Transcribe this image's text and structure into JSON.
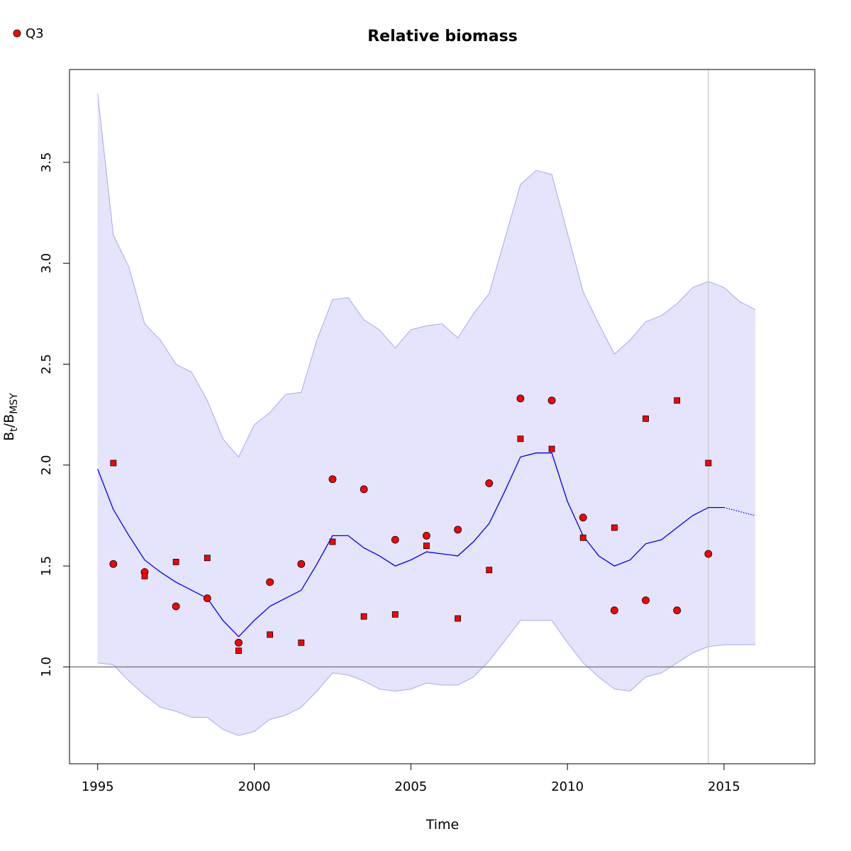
{
  "chart_data": {
    "type": "line",
    "title": "Relative biomass",
    "xlabel": "Time",
    "ylabel_main": "B",
    "ylabel_sub1": "t",
    "ylabel_sep": "/B",
    "ylabel_sub2": "MSY",
    "xlim": [
      1994.1,
      2017.9
    ],
    "ylim": [
      0.52,
      3.96
    ],
    "x_ticks": [
      1995,
      2000,
      2005,
      2010,
      2015
    ],
    "x_tick_labels": [
      "1995",
      "2000",
      "2005",
      "2010",
      "2015"
    ],
    "y_ticks": [
      1.0,
      1.5,
      2.0,
      2.5,
      3.0,
      3.5
    ],
    "y_tick_labels": [
      "1.0",
      "1.5",
      "2.0",
      "2.5",
      "3.0",
      "3.5"
    ],
    "reference_line_y": 1.0,
    "vertical_line_x": 2014.5,
    "legend": {
      "position": "top-left",
      "entries": [
        {
          "label": "Q3",
          "marker": "circle",
          "color": "#ff0000"
        }
      ]
    },
    "colors": {
      "band": "#e4e4fc",
      "band_edge": "#a8a8ee",
      "line": "#0000ee",
      "points": "#ff0000",
      "reference": "#777777",
      "vline": "#cccccc"
    },
    "band_upper": [
      [
        1995.0,
        3.84
      ],
      [
        1995.5,
        3.14
      ],
      [
        1996.0,
        2.98
      ],
      [
        1996.5,
        2.7
      ],
      [
        1997.0,
        2.62
      ],
      [
        1997.5,
        2.5
      ],
      [
        1998.0,
        2.46
      ],
      [
        1998.5,
        2.32
      ],
      [
        1999.0,
        2.13
      ],
      [
        1999.5,
        2.04
      ],
      [
        2000.0,
        2.2
      ],
      [
        2000.5,
        2.26
      ],
      [
        2001.0,
        2.35
      ],
      [
        2001.5,
        2.36
      ],
      [
        2002.0,
        2.62
      ],
      [
        2002.5,
        2.82
      ],
      [
        2003.0,
        2.83
      ],
      [
        2003.5,
        2.72
      ],
      [
        2004.0,
        2.67
      ],
      [
        2004.5,
        2.58
      ],
      [
        2005.0,
        2.67
      ],
      [
        2005.5,
        2.69
      ],
      [
        2006.0,
        2.7
      ],
      [
        2006.5,
        2.63
      ],
      [
        2007.0,
        2.75
      ],
      [
        2007.5,
        2.85
      ],
      [
        2008.0,
        3.12
      ],
      [
        2008.5,
        3.39
      ],
      [
        2009.0,
        3.46
      ],
      [
        2009.5,
        3.44
      ],
      [
        2010.0,
        3.15
      ],
      [
        2010.5,
        2.86
      ],
      [
        2011.0,
        2.7
      ],
      [
        2011.5,
        2.55
      ],
      [
        2012.0,
        2.62
      ],
      [
        2012.5,
        2.71
      ],
      [
        2013.0,
        2.74
      ],
      [
        2013.5,
        2.8
      ],
      [
        2014.0,
        2.88
      ],
      [
        2014.5,
        2.91
      ],
      [
        2015.0,
        2.88
      ],
      [
        2015.5,
        2.81
      ],
      [
        2016.0,
        2.77
      ]
    ],
    "band_lower": [
      [
        1995.0,
        1.02
      ],
      [
        1995.5,
        1.01
      ],
      [
        1996.0,
        0.93
      ],
      [
        1996.5,
        0.86
      ],
      [
        1997.0,
        0.8
      ],
      [
        1997.5,
        0.78
      ],
      [
        1998.0,
        0.75
      ],
      [
        1998.5,
        0.75
      ],
      [
        1999.0,
        0.69
      ],
      [
        1999.5,
        0.66
      ],
      [
        2000.0,
        0.68
      ],
      [
        2000.5,
        0.74
      ],
      [
        2001.0,
        0.76
      ],
      [
        2001.5,
        0.8
      ],
      [
        2002.0,
        0.88
      ],
      [
        2002.5,
        0.97
      ],
      [
        2003.0,
        0.96
      ],
      [
        2003.5,
        0.93
      ],
      [
        2004.0,
        0.89
      ],
      [
        2004.5,
        0.88
      ],
      [
        2005.0,
        0.89
      ],
      [
        2005.5,
        0.92
      ],
      [
        2006.0,
        0.91
      ],
      [
        2006.5,
        0.91
      ],
      [
        2007.0,
        0.95
      ],
      [
        2007.5,
        1.03
      ],
      [
        2008.0,
        1.13
      ],
      [
        2008.5,
        1.23
      ],
      [
        2009.0,
        1.23
      ],
      [
        2009.5,
        1.23
      ],
      [
        2010.0,
        1.12
      ],
      [
        2010.5,
        1.02
      ],
      [
        2011.0,
        0.95
      ],
      [
        2011.5,
        0.89
      ],
      [
        2012.0,
        0.88
      ],
      [
        2012.5,
        0.95
      ],
      [
        2013.0,
        0.97
      ],
      [
        2013.5,
        1.02
      ],
      [
        2014.0,
        1.07
      ],
      [
        2014.5,
        1.1
      ],
      [
        2015.0,
        1.11
      ],
      [
        2015.5,
        1.11
      ],
      [
        2016.0,
        1.11
      ]
    ],
    "series": [
      {
        "style": "solid",
        "points": [
          [
            1995.0,
            1.98
          ],
          [
            1995.5,
            1.78
          ],
          [
            1996.0,
            1.65
          ],
          [
            1996.5,
            1.53
          ],
          [
            1997.0,
            1.47
          ],
          [
            1997.5,
            1.42
          ],
          [
            1998.0,
            1.38
          ],
          [
            1998.5,
            1.34
          ],
          [
            1999.0,
            1.23
          ],
          [
            1999.5,
            1.15
          ],
          [
            2000.0,
            1.23
          ],
          [
            2000.5,
            1.3
          ],
          [
            2001.0,
            1.34
          ],
          [
            2001.5,
            1.38
          ],
          [
            2002.0,
            1.51
          ],
          [
            2002.5,
            1.65
          ],
          [
            2003.0,
            1.65
          ],
          [
            2003.5,
            1.59
          ],
          [
            2004.0,
            1.55
          ],
          [
            2004.5,
            1.5
          ],
          [
            2005.0,
            1.53
          ],
          [
            2005.5,
            1.57
          ],
          [
            2006.0,
            1.56
          ],
          [
            2006.5,
            1.55
          ],
          [
            2007.0,
            1.62
          ],
          [
            2007.5,
            1.71
          ],
          [
            2008.0,
            1.87
          ],
          [
            2008.5,
            2.04
          ],
          [
            2009.0,
            2.06
          ],
          [
            2009.5,
            2.06
          ],
          [
            2010.0,
            1.82
          ],
          [
            2010.5,
            1.65
          ],
          [
            2011.0,
            1.55
          ],
          [
            2011.5,
            1.5
          ],
          [
            2012.0,
            1.53
          ],
          [
            2012.5,
            1.61
          ],
          [
            2013.0,
            1.63
          ],
          [
            2013.5,
            1.69
          ],
          [
            2014.0,
            1.75
          ],
          [
            2014.5,
            1.79
          ],
          [
            2015.0,
            1.79
          ]
        ]
      },
      {
        "style": "dotted",
        "points": [
          [
            2015.0,
            1.79
          ],
          [
            2015.5,
            1.77
          ],
          [
            2016.0,
            1.75
          ]
        ]
      }
    ],
    "points_circle": [
      [
        1995.5,
        1.51
      ],
      [
        1996.5,
        1.47
      ],
      [
        1997.5,
        1.3
      ],
      [
        1998.5,
        1.34
      ],
      [
        1999.5,
        1.12
      ],
      [
        2000.5,
        1.42
      ],
      [
        2001.5,
        1.51
      ],
      [
        2002.5,
        1.93
      ],
      [
        2003.5,
        1.88
      ],
      [
        2004.5,
        1.63
      ],
      [
        2005.5,
        1.65
      ],
      [
        2006.5,
        1.68
      ],
      [
        2007.5,
        1.91
      ],
      [
        2008.5,
        2.33
      ],
      [
        2009.5,
        2.32
      ],
      [
        2010.5,
        1.74
      ],
      [
        2011.5,
        1.28
      ],
      [
        2012.5,
        1.33
      ],
      [
        2013.5,
        1.28
      ],
      [
        2014.5,
        1.56
      ]
    ],
    "points_square": [
      [
        1995.5,
        2.01
      ],
      [
        1996.5,
        1.45
      ],
      [
        1997.5,
        1.52
      ],
      [
        1998.5,
        1.54
      ],
      [
        1999.5,
        1.08
      ],
      [
        2000.5,
        1.16
      ],
      [
        2001.5,
        1.12
      ],
      [
        2002.5,
        1.62
      ],
      [
        2003.5,
        1.25
      ],
      [
        2004.5,
        1.26
      ],
      [
        2005.5,
        1.6
      ],
      [
        2006.5,
        1.24
      ],
      [
        2007.5,
        1.48
      ],
      [
        2008.5,
        2.13
      ],
      [
        2009.5,
        2.08
      ],
      [
        2010.5,
        1.64
      ],
      [
        2011.5,
        1.69
      ],
      [
        2012.5,
        2.23
      ],
      [
        2013.5,
        2.32
      ],
      [
        2014.5,
        2.01
      ]
    ]
  }
}
